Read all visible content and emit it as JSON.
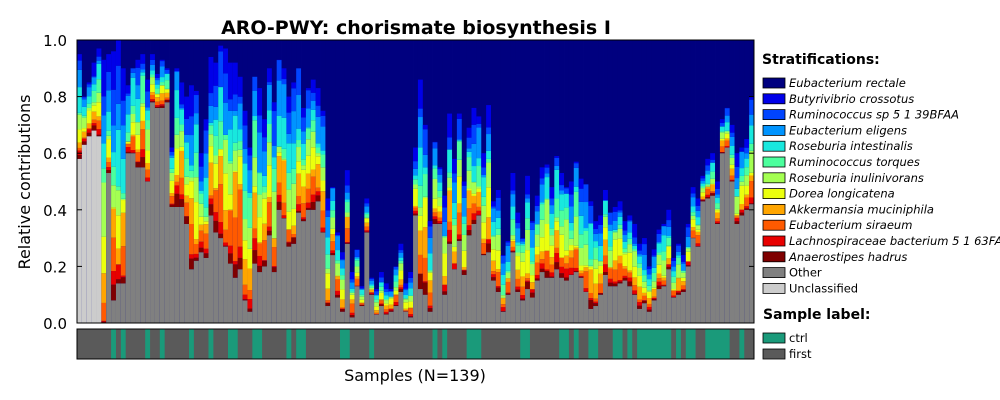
{
  "chart_data": {
    "type": "stacked-bar",
    "title": "ARO-PWY: chorismate biosynthesis I",
    "xlabel": "Samples (N=139)",
    "ylabel": "Relative contributions",
    "ylim": [
      0,
      1.0
    ],
    "yticks": [
      "0.0",
      "0.2",
      "0.4",
      "0.6",
      "0.8",
      "1.0"
    ],
    "n_samples": 139,
    "grid": false,
    "legend_position": "right",
    "legend_title": "Stratifications:",
    "series": [
      {
        "name": "Eubacterium rectale",
        "color": "#00007f",
        "italic": true
      },
      {
        "name": "Butyrivibrio crossotus",
        "color": "#0000e8",
        "italic": true
      },
      {
        "name": "Ruminococcus sp 5 1 39BFAA",
        "color": "#0044ff",
        "italic": true
      },
      {
        "name": "Eubacterium eligens",
        "color": "#0094ff",
        "italic": true
      },
      {
        "name": "Roseburia intestinalis",
        "color": "#18e8de",
        "italic": true
      },
      {
        "name": "Ruminococcus torques",
        "color": "#4cff9d",
        "italic": true
      },
      {
        "name": "Roseburia inulinivorans",
        "color": "#a4ff52",
        "italic": true
      },
      {
        "name": "Dorea longicatena",
        "color": "#ebff0d",
        "italic": true
      },
      {
        "name": "Akkermansia muciniphila",
        "color": "#ffa500",
        "italic": true
      },
      {
        "name": "Eubacterium siraeum",
        "color": "#ff5a00",
        "italic": true
      },
      {
        "name": "Lachnospiraceae bacterium 5 1 63FAA",
        "color": "#e80000",
        "italic": true
      },
      {
        "name": "Anaerostipes hadrus",
        "color": "#7f0000",
        "italic": true
      },
      {
        "name": "Other",
        "color": "#808080",
        "italic": false
      },
      {
        "name": "Unclassified",
        "color": "#cccccc",
        "italic": false
      }
    ],
    "sample_label_title": "Sample label:",
    "sample_labels": [
      {
        "name": "ctrl",
        "color": "#1a9a7a"
      },
      {
        "name": "first",
        "color": "#5a5a5a"
      }
    ],
    "other_fraction_approx": [
      0.58,
      0.62,
      0.65,
      0.67,
      0.66,
      0.0,
      0.53,
      0.08,
      0.14,
      0.14,
      0.6,
      0.6,
      0.55,
      0.55,
      0.5,
      0.78,
      0.76,
      0.76,
      0.78,
      0.41,
      0.41,
      0.41,
      0.35,
      0.19,
      0.22,
      0.25,
      0.23,
      0.38,
      0.32,
      0.3,
      0.27,
      0.21,
      0.16,
      0.19,
      0.08,
      0.04,
      0.21,
      0.18,
      0.2,
      0.31,
      0.18,
      0.4,
      0.37,
      0.27,
      0.28,
      0.39,
      0.36,
      0.4,
      0.4,
      0.43,
      0.32,
      0.06,
      0.24,
      0.09,
      0.04,
      0.28,
      0.02,
      0.13,
      0.06,
      0.32,
      0.1,
      0.03,
      0.06,
      0.03,
      0.04,
      0.06,
      0.11,
      0.04,
      0.02,
      0.38,
      0.12,
      0.1,
      0.04,
      0.35,
      0.35,
      0.1,
      0.28,
      0.19,
      0.29,
      0.17,
      0.31,
      0.35,
      0.38,
      0.24,
      0.25,
      0.15,
      0.11,
      0.04,
      0.1,
      0.25,
      0.11,
      0.08,
      0.12,
      0.09,
      0.15,
      0.18,
      0.16,
      0.16,
      0.19,
      0.16,
      0.15,
      0.17,
      0.18,
      0.16,
      0.11,
      0.05,
      0.06,
      0.1,
      0.17,
      0.13,
      0.13,
      0.14,
      0.15,
      0.13,
      0.1,
      0.05,
      0.07,
      0.04,
      0.08,
      0.12,
      0.13,
      0.19,
      0.09,
      0.1,
      0.11,
      0.2,
      0.3,
      0.27,
      0.43,
      0.44,
      0.45,
      0.35,
      0.6,
      0.62,
      0.5,
      0.35,
      0.38,
      0.4,
      0.42
    ],
    "top_stack_approx": [
      0.95,
      0.8,
      0.85,
      0.92,
      0.97,
      0.93,
      0.95,
      0.96,
      1.0,
      0.9,
      0.84,
      0.9,
      0.93,
      0.95,
      0.86,
      0.95,
      0.88,
      0.93,
      0.9,
      0.62,
      0.9,
      0.85,
      0.8,
      0.84,
      0.82,
      0.6,
      0.72,
      0.94,
      0.92,
      0.98,
      0.97,
      0.92,
      0.92,
      0.87,
      0.75,
      0.62,
      0.87,
      0.83,
      0.72,
      0.9,
      0.78,
      0.93,
      0.9,
      0.8,
      0.85,
      0.9,
      0.76,
      0.83,
      0.86,
      0.83,
      0.75,
      0.44,
      0.48,
      0.32,
      0.25,
      0.54,
      0.18,
      0.26,
      0.13,
      0.44,
      0.16,
      0.12,
      0.18,
      0.14,
      0.12,
      0.2,
      0.28,
      0.14,
      0.18,
      0.62,
      0.86,
      0.7,
      0.36,
      0.64,
      0.55,
      0.45,
      0.74,
      0.58,
      0.74,
      0.5,
      0.69,
      0.76,
      0.73,
      0.6,
      0.77,
      0.43,
      0.47,
      0.24,
      0.29,
      0.53,
      0.39,
      0.3,
      0.52,
      0.36,
      0.45,
      0.55,
      0.56,
      0.48,
      0.59,
      0.53,
      0.48,
      0.5,
      0.57,
      0.51,
      0.49,
      0.43,
      0.36,
      0.38,
      0.47,
      0.39,
      0.41,
      0.43,
      0.36,
      0.38,
      0.35,
      0.28,
      0.3,
      0.2,
      0.26,
      0.33,
      0.35,
      0.4,
      0.23,
      0.28,
      0.24,
      0.35,
      0.48,
      0.44,
      0.52,
      0.58,
      0.6,
      0.5,
      0.72,
      0.76,
      0.7,
      0.6,
      0.62,
      0.65,
      0.8
    ],
    "sample_label_pattern": "mostly first; ctrl at scattered positions"
  }
}
